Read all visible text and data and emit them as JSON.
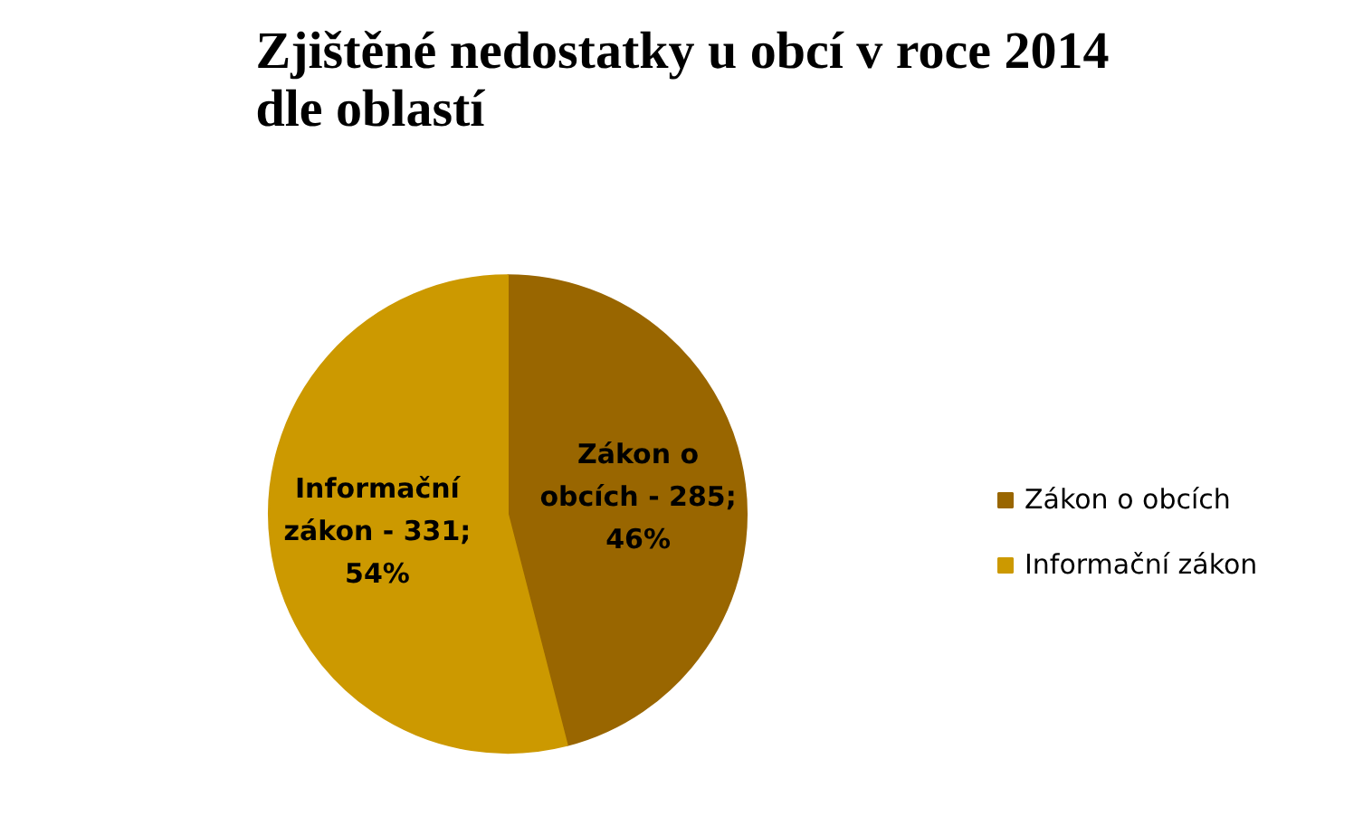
{
  "chart_data": {
    "type": "pie",
    "title": "Zjištěné nedostatky u obcí v roce 2014 dle oblastí",
    "categories": [
      "Zákon o obcích",
      "Informační zákon"
    ],
    "values": [
      46,
      54
    ],
    "colors": [
      "#996600",
      "#cc9900"
    ],
    "value_labels": [
      "Zákon o obcích - 285; 46%",
      "Informační zákon - 331; 54%"
    ],
    "legend": "right"
  }
}
